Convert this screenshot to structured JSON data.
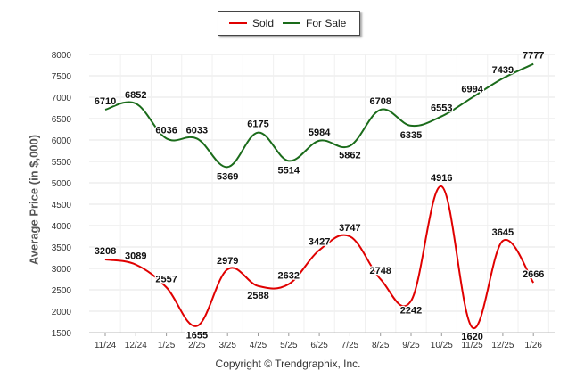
{
  "chart_data": {
    "type": "line",
    "title": "",
    "categories": [
      "11/24",
      "12/24",
      "1/25",
      "2/25",
      "3/25",
      "4/25",
      "5/25",
      "6/25",
      "7/25",
      "8/25",
      "9/25",
      "10/25",
      "11/25",
      "12/25",
      "1/26"
    ],
    "series": [
      {
        "name": "Sold",
        "color": "#e00000",
        "values": [
          3208,
          3089,
          2557,
          1655,
          2979,
          2588,
          2632,
          3427,
          3747,
          2748,
          2242,
          4916,
          1620,
          3645,
          2666
        ]
      },
      {
        "name": "For Sale",
        "color": "#1a6b1a",
        "values": [
          6710,
          6852,
          6036,
          6033,
          5369,
          6175,
          5514,
          5984,
          5862,
          6708,
          6335,
          6553,
          6994,
          7439,
          7777
        ]
      }
    ],
    "ylabel": "Average Price (in $,000)",
    "xlabel": "",
    "ylim": [
      1500,
      8000
    ],
    "yticks": [
      1500,
      2000,
      2500,
      3000,
      3500,
      4000,
      4500,
      5000,
      5500,
      6000,
      6500,
      7000,
      7500,
      8000
    ],
    "legend_position": "top-center",
    "grid": true
  },
  "footer": {
    "copyright": "Copyright © Trendgraphix, Inc."
  }
}
